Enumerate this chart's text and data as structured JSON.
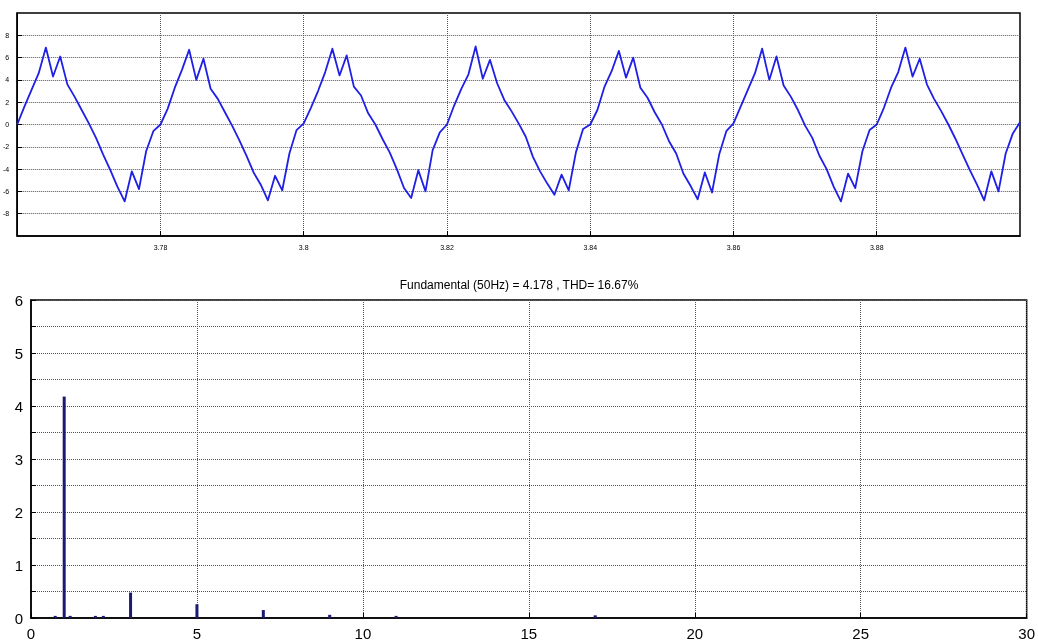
{
  "chart_data": [
    {
      "type": "line",
      "color": "#1f1fe6",
      "marker": "none",
      "grid": true,
      "x": [
        3.76,
        3.761,
        3.762,
        3.763,
        3.764,
        3.765,
        3.766,
        3.767,
        3.768,
        3.769,
        3.77,
        3.771,
        3.772,
        3.773,
        3.774,
        3.775,
        3.776,
        3.777,
        3.778,
        3.779,
        3.78,
        3.781,
        3.782,
        3.783,
        3.784,
        3.785,
        3.786,
        3.787,
        3.788,
        3.789,
        3.79,
        3.791,
        3.792,
        3.793,
        3.794,
        3.795,
        3.796,
        3.797,
        3.798,
        3.799,
        3.8,
        3.801,
        3.802,
        3.803,
        3.804,
        3.805,
        3.806,
        3.807,
        3.808,
        3.809,
        3.81,
        3.811,
        3.812,
        3.813,
        3.814,
        3.815,
        3.816,
        3.817,
        3.818,
        3.819,
        3.82,
        3.821,
        3.822,
        3.823,
        3.824,
        3.825,
        3.826,
        3.827,
        3.828,
        3.829,
        3.83,
        3.831,
        3.832,
        3.833,
        3.834,
        3.835,
        3.836,
        3.837,
        3.838,
        3.839,
        3.84,
        3.841,
        3.842,
        3.843,
        3.844,
        3.845,
        3.846,
        3.847,
        3.848,
        3.849,
        3.85,
        3.851,
        3.852,
        3.853,
        3.854,
        3.855,
        3.856,
        3.857,
        3.858,
        3.859,
        3.86,
        3.861,
        3.862,
        3.863,
        3.864,
        3.865,
        3.866,
        3.867,
        3.868,
        3.869,
        3.87,
        3.871,
        3.872,
        3.873,
        3.874,
        3.875,
        3.876,
        3.877,
        3.878,
        3.879,
        3.88,
        3.881,
        3.882,
        3.883,
        3.884,
        3.885,
        3.886,
        3.887,
        3.888,
        3.889,
        3.89,
        3.891,
        3.892,
        3.893,
        3.894,
        3.895,
        3.896,
        3.897,
        3.898,
        3.899,
        3.9
      ],
      "values": [
        0,
        1.6,
        3.1,
        4.6,
        6.9,
        4.3,
        6.1,
        3.6,
        2.5,
        1.3,
        0.1,
        -1.2,
        -2.7,
        -4.1,
        -5.6,
        -6.9,
        -4.2,
        -5.8,
        -2.4,
        -0.6,
        0,
        1.4,
        3.3,
        4.9,
        6.7,
        4.0,
        5.9,
        3.2,
        2.3,
        1.1,
        -0.1,
        -1.4,
        -2.8,
        -4.3,
        -5.4,
        -6.8,
        -4.6,
        -5.9,
        -2.6,
        -0.5,
        0.1,
        1.5,
        3.0,
        4.7,
        6.8,
        4.4,
        6.2,
        3.4,
        2.6,
        1.0,
        0,
        -1.3,
        -2.5,
        -4.0,
        -5.7,
        -6.6,
        -4.1,
        -6.0,
        -2.3,
        -0.7,
        0,
        1.7,
        3.2,
        4.5,
        7.0,
        4.1,
        5.8,
        3.7,
        2.2,
        1.2,
        0.1,
        -1.1,
        -2.9,
        -4.2,
        -5.3,
        -6.3,
        -4.5,
        -5.9,
        -2.5,
        -0.4,
        0,
        1.3,
        3.4,
        4.8,
        6.6,
        4.2,
        6.0,
        3.3,
        2.4,
        1.1,
        0,
        -1.5,
        -2.6,
        -4.4,
        -5.5,
        -6.7,
        -4.3,
        -6.1,
        -2.7,
        -0.6,
        0.1,
        1.6,
        3.1,
        4.6,
        6.8,
        4.0,
        6.1,
        3.5,
        2.5,
        1.3,
        -0.1,
        -1.2,
        -2.8,
        -4.0,
        -5.6,
        -6.9,
        -4.4,
        -5.7,
        -2.4,
        -0.5,
        0,
        1.5,
        3.3,
        4.7,
        6.9,
        4.3,
        5.9,
        3.6,
        2.3,
        1.2,
        0,
        -1.3,
        -2.7,
        -4.1,
        -5.4,
        -6.8,
        -4.2,
        -6.0,
        -2.6,
        -0.8,
        0.2
      ],
      "xlim": [
        3.76,
        3.9
      ],
      "xticks": [
        3.78,
        3.8,
        3.82,
        3.84,
        3.86,
        3.88
      ],
      "ylim": [
        -10,
        10
      ],
      "yticks": [
        -8,
        -6,
        -4,
        -2,
        0,
        2,
        4,
        6,
        8
      ]
    },
    {
      "type": "bar",
      "title": "Fundamental (50Hz) = 4.178 , THD= 16.67%",
      "color": "#1a1a70",
      "grid": true,
      "x": [
        0.73,
        1,
        1.18,
        1.94,
        2.18,
        3,
        5,
        7,
        9,
        11,
        17
      ],
      "values": [
        0.04,
        4.178,
        0.04,
        0.04,
        0.04,
        0.48,
        0.26,
        0.15,
        0.06,
        0.04,
        0.05
      ],
      "xlim": [
        0,
        30
      ],
      "xticks": [
        0,
        5,
        10,
        15,
        20,
        25,
        30
      ],
      "ylim": [
        0,
        6
      ],
      "yticks": [
        0,
        {
          "value": 0.5,
          "label": null
        },
        1,
        {
          "value": 1.5,
          "label": null
        },
        2,
        {
          "value": 2.5,
          "label": null
        },
        3,
        {
          "value": 3.5,
          "label": null
        },
        4,
        {
          "value": 4.5,
          "label": null
        },
        5,
        {
          "value": 5.5,
          "label": null
        },
        6
      ]
    }
  ]
}
